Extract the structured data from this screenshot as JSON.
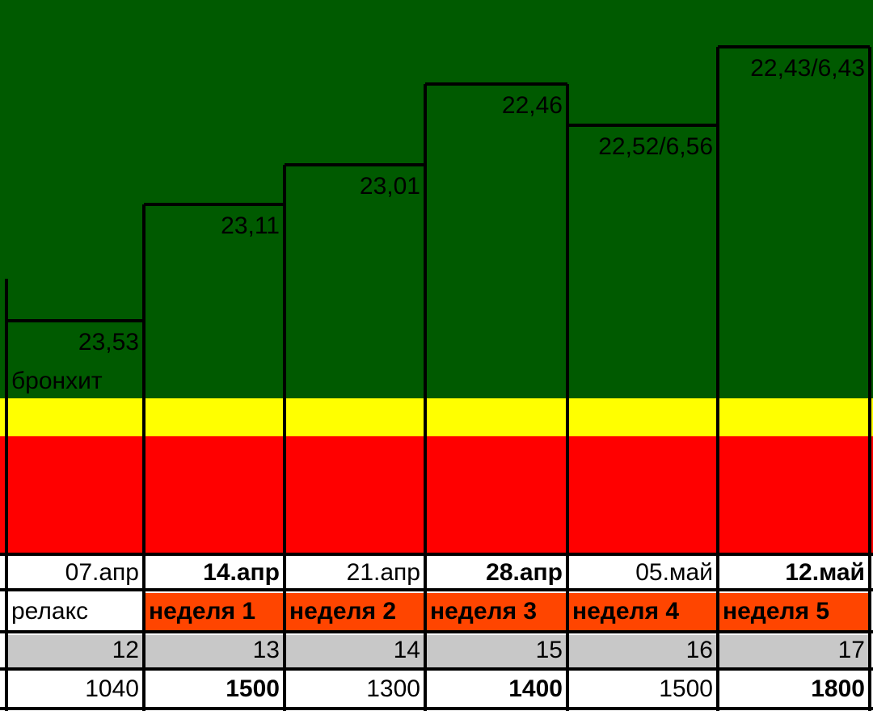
{
  "columns": [
    {
      "value": "23,53",
      "note": "бронхит",
      "date": "07.апр",
      "week": "релакс",
      "number": "12",
      "total": "1040"
    },
    {
      "value": "23,11",
      "date": "14.апр",
      "week": "неделя 1",
      "number": "13",
      "total": "1500"
    },
    {
      "value": "23,01",
      "date": "21.апр",
      "week": "неделя 2",
      "number": "14",
      "total": "1300"
    },
    {
      "value": "22,46",
      "date": "28.апр",
      "week": "неделя 3",
      "number": "15",
      "total": "1400"
    },
    {
      "value": "22,52/6,56",
      "date": "05.май",
      "week": "неделя 4",
      "number": "16",
      "total": "1500"
    },
    {
      "value": "22,43/6,43",
      "date": "12.май",
      "week": "неделя 5",
      "number": "17",
      "total": "1800"
    }
  ]
}
